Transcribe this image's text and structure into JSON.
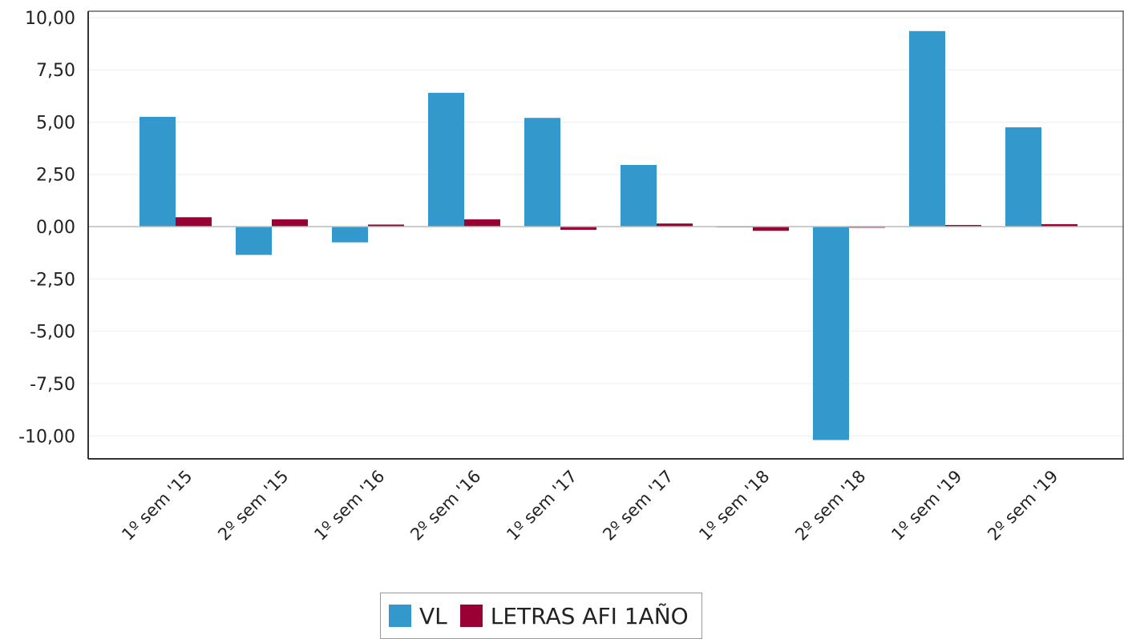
{
  "chart_data": {
    "type": "bar",
    "categories": [
      "1º sem '15",
      "2º sem '15",
      "1º sem '16",
      "2º sem '16",
      "1º sem '17",
      "2º sem '17",
      "1º sem '18",
      "2º sem '18",
      "1º sem '19",
      "2º sem '19"
    ],
    "series": [
      {
        "name": "VL",
        "color": "#3399cc",
        "values": [
          5.25,
          -1.35,
          -0.75,
          6.4,
          5.2,
          2.95,
          -0.02,
          -10.2,
          9.35,
          4.75
        ]
      },
      {
        "name": "LETRAS AFI 1AÑO",
        "color": "#990033",
        "values": [
          0.45,
          0.35,
          0.1,
          0.35,
          -0.15,
          0.15,
          -0.2,
          -0.05,
          0.08,
          0.12
        ]
      }
    ],
    "yticks": [
      "10,00",
      "7,50",
      "5,00",
      "2,50",
      "0,00",
      "-2,50",
      "-5,00",
      "-7,50",
      "-10,00"
    ],
    "ylim": [
      -11.1,
      10.3
    ],
    "grid": true,
    "legend_position": "bottom"
  }
}
